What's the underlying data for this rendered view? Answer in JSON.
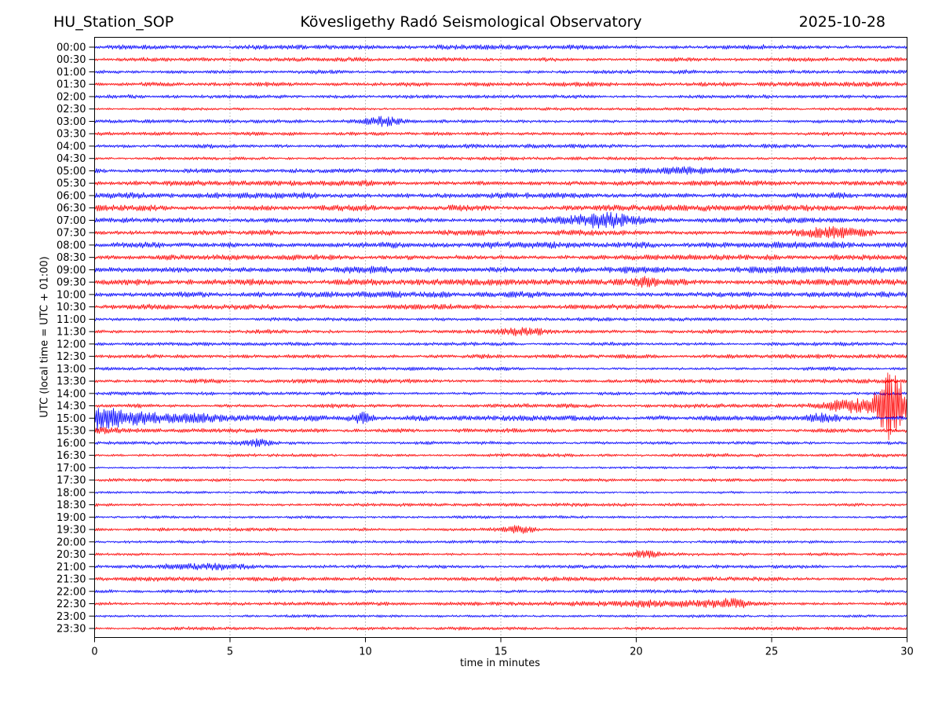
{
  "header": {
    "station": "HU_Station_SOP",
    "title": "Kövesligethy Radó Seismological Observatory",
    "date": "2025-10-28"
  },
  "chart_data": {
    "type": "line",
    "subtype": "helicorder-seismogram-dayplot",
    "station": "HU_Station_SOP",
    "title": "Kövesligethy Radó Seismological Observatory",
    "date": "2025-10-28",
    "xlabel": "time in minutes",
    "ylabel": "UTC (local time = UTC + 01:00)",
    "xlim": [
      0,
      30
    ],
    "xticks": [
      0,
      5,
      10,
      15,
      20,
      25,
      30
    ],
    "grid": "vertical dotted gridlines at 5-minute intervals",
    "minutes_per_row": 30,
    "axis_color": "#000000",
    "grid_color": "#777777",
    "trace_colors": {
      "blue": "#0000ff",
      "red": "#ff0000"
    },
    "rows": [
      {
        "label": "00:00",
        "color": "blue",
        "noise": 3.2,
        "events": []
      },
      {
        "label": "00:30",
        "color": "red",
        "noise": 2.8,
        "events": []
      },
      {
        "label": "01:00",
        "color": "blue",
        "noise": 2.8,
        "events": []
      },
      {
        "label": "01:30",
        "color": "red",
        "noise": 3.2,
        "events": []
      },
      {
        "label": "02:00",
        "color": "blue",
        "noise": 2.4,
        "events": []
      },
      {
        "label": "02:30",
        "color": "red",
        "noise": 2.0,
        "events": []
      },
      {
        "label": "03:00",
        "color": "blue",
        "noise": 2.4,
        "events": [
          {
            "t": 10.6,
            "w": 0.45,
            "a": 5
          }
        ]
      },
      {
        "label": "03:30",
        "color": "red",
        "noise": 3.0,
        "events": []
      },
      {
        "label": "04:00",
        "color": "blue",
        "noise": 2.8,
        "events": []
      },
      {
        "label": "04:30",
        "color": "red",
        "noise": 2.3,
        "events": []
      },
      {
        "label": "05:00",
        "color": "blue",
        "noise": 2.8,
        "events": [
          {
            "t": 22.0,
            "w": 1.2,
            "a": 3.5
          }
        ]
      },
      {
        "label": "05:30",
        "color": "red",
        "noise": 3.8,
        "events": []
      },
      {
        "label": "06:00",
        "color": "blue",
        "noise": 4.2,
        "events": []
      },
      {
        "label": "06:30",
        "color": "red",
        "noise": 4.2,
        "events": []
      },
      {
        "label": "07:00",
        "color": "blue",
        "noise": 3.8,
        "events": [
          {
            "t": 18.8,
            "w": 0.9,
            "a": 8.5
          }
        ]
      },
      {
        "label": "07:30",
        "color": "red",
        "noise": 3.8,
        "events": [
          {
            "t": 27.2,
            "w": 0.8,
            "a": 6.5
          }
        ]
      },
      {
        "label": "08:00",
        "color": "blue",
        "noise": 4.6,
        "events": []
      },
      {
        "label": "08:30",
        "color": "red",
        "noise": 3.8,
        "events": []
      },
      {
        "label": "09:00",
        "color": "blue",
        "noise": 4.6,
        "events": []
      },
      {
        "label": "09:30",
        "color": "red",
        "noise": 4.2,
        "events": [
          {
            "t": 20.3,
            "w": 0.3,
            "a": 4.5
          }
        ]
      },
      {
        "label": "10:00",
        "color": "blue",
        "noise": 4.2,
        "events": []
      },
      {
        "label": "10:30",
        "color": "red",
        "noise": 3.4,
        "events": []
      },
      {
        "label": "11:00",
        "color": "blue",
        "noise": 2.4,
        "events": []
      },
      {
        "label": "11:30",
        "color": "red",
        "noise": 2.8,
        "events": [
          {
            "t": 15.8,
            "w": 0.7,
            "a": 4
          }
        ]
      },
      {
        "label": "12:00",
        "color": "blue",
        "noise": 2.4,
        "events": []
      },
      {
        "label": "12:30",
        "color": "red",
        "noise": 2.8,
        "events": []
      },
      {
        "label": "13:00",
        "color": "blue",
        "noise": 2.4,
        "events": []
      },
      {
        "label": "13:30",
        "color": "red",
        "noise": 2.8,
        "events": []
      },
      {
        "label": "14:00",
        "color": "blue",
        "noise": 2.4,
        "events": []
      },
      {
        "label": "14:30",
        "color": "red",
        "noise": 2.8,
        "events": [
          {
            "t": 28.0,
            "w": 0.7,
            "a": 7
          },
          {
            "t": 29.35,
            "w": 0.33,
            "a": 45
          },
          {
            "t": 29.85,
            "w": 0.12,
            "a": 10
          }
        ]
      },
      {
        "label": "15:00",
        "color": "blue",
        "noise": 3.4,
        "events": [
          {
            "type": "decay",
            "t": 0,
            "tau": 3.0,
            "a": 13
          },
          {
            "t": 9.9,
            "w": 0.3,
            "a": 5.5
          },
          {
            "t": 26.9,
            "w": 0.5,
            "a": 5
          }
        ]
      },
      {
        "label": "15:30",
        "color": "red",
        "noise": 2.8,
        "events": [
          {
            "type": "decay",
            "t": 0,
            "tau": 1.2,
            "a": 4
          }
        ]
      },
      {
        "label": "16:00",
        "color": "blue",
        "noise": 2.2,
        "events": [
          {
            "t": 6.0,
            "w": 0.4,
            "a": 3.5
          }
        ]
      },
      {
        "label": "16:30",
        "color": "red",
        "noise": 2.4,
        "events": []
      },
      {
        "label": "17:00",
        "color": "blue",
        "noise": 1.9,
        "events": []
      },
      {
        "label": "17:30",
        "color": "red",
        "noise": 2.1,
        "events": []
      },
      {
        "label": "18:00",
        "color": "blue",
        "noise": 1.9,
        "events": []
      },
      {
        "label": "18:30",
        "color": "red",
        "noise": 2.3,
        "events": []
      },
      {
        "label": "19:00",
        "color": "blue",
        "noise": 1.9,
        "events": []
      },
      {
        "label": "19:30",
        "color": "red",
        "noise": 2.3,
        "events": [
          {
            "t": 15.7,
            "w": 0.4,
            "a": 3.5
          }
        ]
      },
      {
        "label": "20:00",
        "color": "blue",
        "noise": 1.9,
        "events": []
      },
      {
        "label": "20:30",
        "color": "red",
        "noise": 2.1,
        "events": [
          {
            "t": 20.3,
            "w": 0.35,
            "a": 3.5
          }
        ]
      },
      {
        "label": "21:00",
        "color": "blue",
        "noise": 2.4,
        "events": [
          {
            "t": 4.2,
            "w": 1.2,
            "a": 3
          }
        ]
      },
      {
        "label": "21:30",
        "color": "red",
        "noise": 2.9,
        "events": []
      },
      {
        "label": "22:00",
        "color": "blue",
        "noise": 2.4,
        "events": []
      },
      {
        "label": "22:30",
        "color": "red",
        "noise": 2.4,
        "events": [
          {
            "t": 20.5,
            "w": 2.0,
            "a": 3
          },
          {
            "t": 23.4,
            "w": 0.5,
            "a": 4
          }
        ]
      },
      {
        "label": "23:00",
        "color": "blue",
        "noise": 1.9,
        "events": []
      },
      {
        "label": "23:30",
        "color": "red",
        "noise": 2.2,
        "events": []
      }
    ],
    "notable_events": [
      {
        "row": "03:00",
        "minute": 10.6,
        "description": "small burst"
      },
      {
        "row": "07:00",
        "minute": 18.8,
        "description": "moderate burst"
      },
      {
        "row": "07:30",
        "minute": 27.2,
        "description": "moderate burst"
      },
      {
        "row": "14:30",
        "minute": 29.3,
        "description": "large event, amplitude overflows neighboring rows"
      },
      {
        "row": "15:00",
        "minute": 0,
        "description": "decaying coda of the 14:30 event"
      },
      {
        "row": "22:30",
        "minute": 20.5,
        "description": "slightly elevated noise"
      }
    ]
  }
}
